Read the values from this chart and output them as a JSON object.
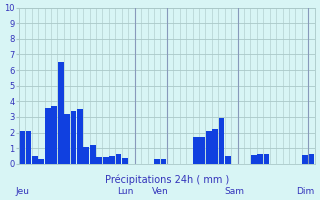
{
  "bar_values": [
    2.1,
    2.1,
    0.5,
    0.3,
    3.6,
    3.7,
    6.5,
    3.2,
    3.4,
    3.5,
    1.1,
    1.2,
    0.4,
    0.4,
    0.5,
    0.6,
    0.35,
    0.0,
    0.0,
    0.0,
    0.0,
    0.3,
    0.3,
    0.0,
    0.0,
    0.0,
    0.0,
    1.7,
    1.7,
    2.1,
    2.2,
    2.9,
    0.5,
    0.0,
    0.0,
    0.0,
    0.55,
    0.6,
    0.6,
    0.0,
    0.0,
    0.0,
    0.0,
    0.0,
    0.55,
    0.6
  ],
  "bar_color": "#1040e0",
  "background_color": "#d8f5f5",
  "grid_color": "#aac8c8",
  "spine_color": "#aac8c8",
  "tick_color": "#3333bb",
  "label_color": "#3333bb",
  "xlabel": "Précipitations 24h ( mm )",
  "ylim": [
    0,
    10
  ],
  "yticks": [
    0,
    1,
    2,
    3,
    4,
    5,
    6,
    7,
    8,
    9,
    10
  ],
  "day_labels": [
    "Jeu",
    "Lun",
    "Ven",
    "Sam",
    "Dim"
  ],
  "total_bars": 46
}
